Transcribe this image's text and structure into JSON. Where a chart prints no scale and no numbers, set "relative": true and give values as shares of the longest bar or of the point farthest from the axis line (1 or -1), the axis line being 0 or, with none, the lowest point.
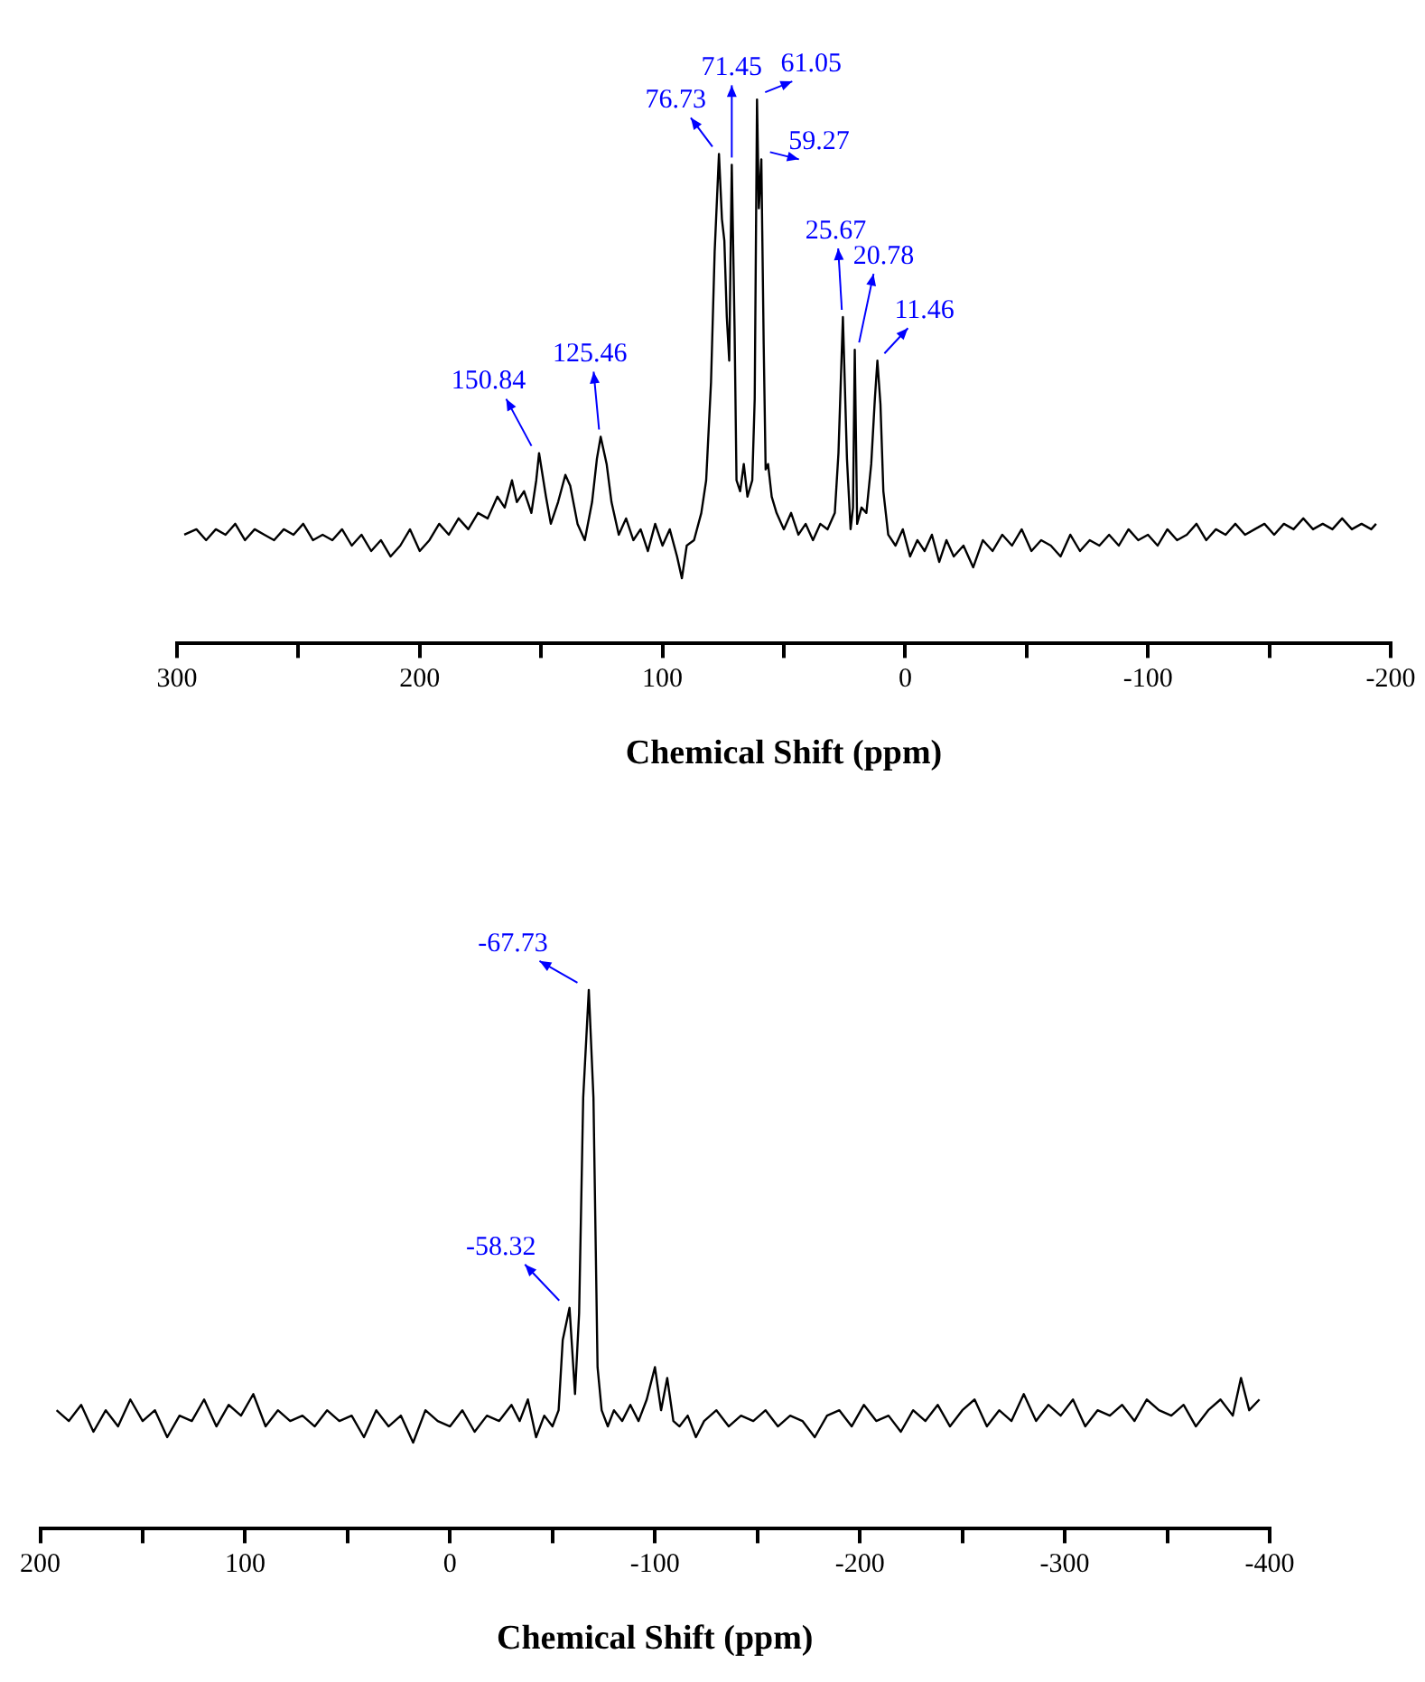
{
  "chart_data": [
    {
      "type": "line",
      "xlabel": "Chemical Shift (ppm)",
      "relative": true,
      "marker": "none",
      "xlim": [
        300,
        -200
      ],
      "xticks": [
        300,
        {
          "value": 250,
          "label": null
        },
        200,
        {
          "value": 150,
          "label": null
        },
        100,
        {
          "value": 50,
          "label": null
        },
        0,
        {
          "value": -50,
          "label": null
        },
        -100,
        {
          "value": -150,
          "label": null
        },
        -200
      ],
      "x": [
        297,
        292,
        288,
        284,
        280,
        276,
        272,
        268,
        264,
        260,
        256,
        252,
        248,
        244,
        240,
        236,
        232,
        228,
        224,
        220,
        216,
        212,
        208,
        204,
        200,
        196,
        192,
        188,
        184,
        180,
        176,
        172,
        168,
        165,
        162,
        160,
        157,
        154,
        152,
        150.84,
        148,
        146,
        143,
        140,
        138,
        135,
        132,
        129,
        127,
        125.46,
        123,
        121,
        118,
        115,
        112,
        109,
        106,
        103,
        100,
        97,
        94,
        92,
        90,
        87,
        84,
        82,
        80,
        78.5,
        76.73,
        75.5,
        74.5,
        73.5,
        72.5,
        71.45,
        70.3,
        69.5,
        68,
        66.5,
        65,
        63,
        62,
        61.05,
        60.3,
        59.27,
        58.3,
        57.5,
        56.5,
        55,
        53,
        50,
        47,
        44,
        41,
        38,
        35,
        32,
        29,
        27.5,
        25.67,
        24,
        22.5,
        21.5,
        20.78,
        19.8,
        18,
        16,
        14,
        12.5,
        11.46,
        10.2,
        9,
        7,
        4,
        1,
        -2,
        -5,
        -8,
        -11,
        -14,
        -17,
        -20,
        -24,
        -28,
        -32,
        -36,
        -40,
        -44,
        -48,
        -52,
        -56,
        -60,
        -64,
        -68,
        -72,
        -76,
        -80,
        -84,
        -88,
        -92,
        -96,
        -100,
        -104,
        -108,
        -112,
        -116,
        -120,
        -124,
        -128,
        -132,
        -136,
        -140,
        -144,
        -148,
        -152,
        -156,
        -160,
        -164,
        -168,
        -172,
        -176,
        -180,
        -184,
        -188,
        -192,
        -194
      ],
      "series": [
        {
          "color": "#000000",
          "values": [
            0.2,
            0.21,
            0.19,
            0.21,
            0.2,
            0.22,
            0.19,
            0.21,
            0.2,
            0.19,
            0.21,
            0.2,
            0.22,
            0.19,
            0.2,
            0.19,
            0.21,
            0.18,
            0.2,
            0.17,
            0.19,
            0.16,
            0.18,
            0.21,
            0.17,
            0.19,
            0.22,
            0.2,
            0.23,
            0.21,
            0.24,
            0.23,
            0.27,
            0.25,
            0.3,
            0.26,
            0.28,
            0.24,
            0.3,
            0.35,
            0.27,
            0.22,
            0.26,
            0.31,
            0.29,
            0.22,
            0.19,
            0.26,
            0.34,
            0.38,
            0.33,
            0.26,
            0.2,
            0.23,
            0.19,
            0.21,
            0.17,
            0.22,
            0.18,
            0.21,
            0.16,
            0.12,
            0.18,
            0.19,
            0.24,
            0.3,
            0.48,
            0.72,
            0.9,
            0.78,
            0.74,
            0.6,
            0.52,
            0.88,
            0.58,
            0.3,
            0.28,
            0.33,
            0.27,
            0.3,
            0.45,
            1.0,
            0.8,
            0.89,
            0.55,
            0.32,
            0.33,
            0.27,
            0.24,
            0.21,
            0.24,
            0.2,
            0.22,
            0.19,
            0.22,
            0.21,
            0.24,
            0.35,
            0.6,
            0.34,
            0.21,
            0.25,
            0.54,
            0.22,
            0.25,
            0.24,
            0.33,
            0.45,
            0.52,
            0.44,
            0.28,
            0.2,
            0.18,
            0.21,
            0.16,
            0.19,
            0.17,
            0.2,
            0.15,
            0.19,
            0.16,
            0.18,
            0.14,
            0.19,
            0.17,
            0.2,
            0.18,
            0.21,
            0.17,
            0.19,
            0.18,
            0.16,
            0.2,
            0.17,
            0.19,
            0.18,
            0.2,
            0.18,
            0.21,
            0.19,
            0.2,
            0.18,
            0.21,
            0.19,
            0.2,
            0.22,
            0.19,
            0.21,
            0.2,
            0.22,
            0.2,
            0.21,
            0.22,
            0.2,
            0.22,
            0.21,
            0.23,
            0.21,
            0.22,
            0.21,
            0.23,
            0.21,
            0.22,
            0.21,
            0.22
          ]
        }
      ],
      "annotations": [
        {
          "text": "150.84",
          "x": 150.84,
          "y": 0.35
        },
        {
          "text": "125.46",
          "x": 125.46,
          "y": 0.38
        },
        {
          "text": "76.73",
          "x": 76.73,
          "y": 0.9
        },
        {
          "text": "71.45",
          "x": 71.45,
          "y": 0.88
        },
        {
          "text": "61.05",
          "x": 61.05,
          "y": 1.0
        },
        {
          "text": "59.27",
          "x": 59.27,
          "y": 0.89
        },
        {
          "text": "25.67",
          "x": 25.67,
          "y": 0.6
        },
        {
          "text": "20.78",
          "x": 20.78,
          "y": 0.54
        },
        {
          "text": "11.46",
          "x": 11.46,
          "y": 0.52
        }
      ]
    },
    {
      "type": "line",
      "xlabel": "Chemical Shift (ppm)",
      "relative": true,
      "marker": "none",
      "xlim": [
        200,
        -400
      ],
      "xticks": [
        200,
        {
          "value": 150,
          "label": null
        },
        100,
        {
          "value": 50,
          "label": null
        },
        0,
        {
          "value": -50,
          "label": null
        },
        -100,
        {
          "value": -150,
          "label": null
        },
        -200,
        {
          "value": -250,
          "label": null
        },
        -300,
        {
          "value": -350,
          "label": null
        },
        -400
      ],
      "x": [
        192,
        186,
        180,
        174,
        168,
        162,
        156,
        150,
        144,
        138,
        132,
        126,
        120,
        114,
        108,
        102,
        96,
        90,
        84,
        78,
        72,
        66,
        60,
        54,
        48,
        42,
        36,
        30,
        24,
        18,
        12,
        6,
        0,
        -6,
        -12,
        -18,
        -24,
        -30,
        -34,
        -38,
        -42,
        -46,
        -50,
        -53,
        -55,
        -58.32,
        -59.5,
        -61,
        -63,
        -65,
        -67.73,
        -70,
        -72,
        -74,
        -77,
        -80,
        -84,
        -88,
        -92,
        -96,
        -100,
        -103,
        -106,
        -109,
        -112,
        -116,
        -120,
        -124,
        -130,
        -136,
        -142,
        -148,
        -154,
        -160,
        -166,
        -172,
        -178,
        -184,
        -190,
        -196,
        -202,
        -208,
        -214,
        -220,
        -226,
        -232,
        -238,
        -244,
        -250,
        -256,
        -262,
        -268,
        -274,
        -280,
        -286,
        -292,
        -298,
        -304,
        -310,
        -316,
        -322,
        -328,
        -334,
        -340,
        -346,
        -352,
        -358,
        -364,
        -370,
        -376,
        -382,
        -386,
        -390,
        -395
      ],
      "series": [
        {
          "color": "#000000",
          "values": [
            0.22,
            0.2,
            0.23,
            0.18,
            0.22,
            0.19,
            0.24,
            0.2,
            0.22,
            0.17,
            0.21,
            0.2,
            0.24,
            0.19,
            0.23,
            0.21,
            0.25,
            0.19,
            0.22,
            0.2,
            0.21,
            0.19,
            0.22,
            0.2,
            0.21,
            0.17,
            0.22,
            0.19,
            0.21,
            0.16,
            0.22,
            0.2,
            0.19,
            0.22,
            0.18,
            0.21,
            0.2,
            0.23,
            0.2,
            0.24,
            0.17,
            0.21,
            0.19,
            0.22,
            0.35,
            0.41,
            0.34,
            0.25,
            0.4,
            0.8,
            1.0,
            0.8,
            0.3,
            0.22,
            0.19,
            0.22,
            0.2,
            0.23,
            0.2,
            0.24,
            0.3,
            0.22,
            0.28,
            0.2,
            0.19,
            0.21,
            0.17,
            0.2,
            0.22,
            0.19,
            0.21,
            0.2,
            0.22,
            0.19,
            0.21,
            0.2,
            0.17,
            0.21,
            0.22,
            0.19,
            0.23,
            0.2,
            0.21,
            0.18,
            0.22,
            0.2,
            0.23,
            0.19,
            0.22,
            0.24,
            0.19,
            0.22,
            0.2,
            0.25,
            0.2,
            0.23,
            0.21,
            0.24,
            0.19,
            0.22,
            0.21,
            0.23,
            0.2,
            0.24,
            0.22,
            0.21,
            0.23,
            0.19,
            0.22,
            0.24,
            0.21,
            0.28,
            0.22,
            0.24
          ]
        }
      ],
      "annotations": [
        {
          "text": "-67.73",
          "x": -67.73,
          "y": 1.0
        },
        {
          "text": "-58.32",
          "x": -58.32,
          "y": 0.41
        }
      ]
    }
  ]
}
